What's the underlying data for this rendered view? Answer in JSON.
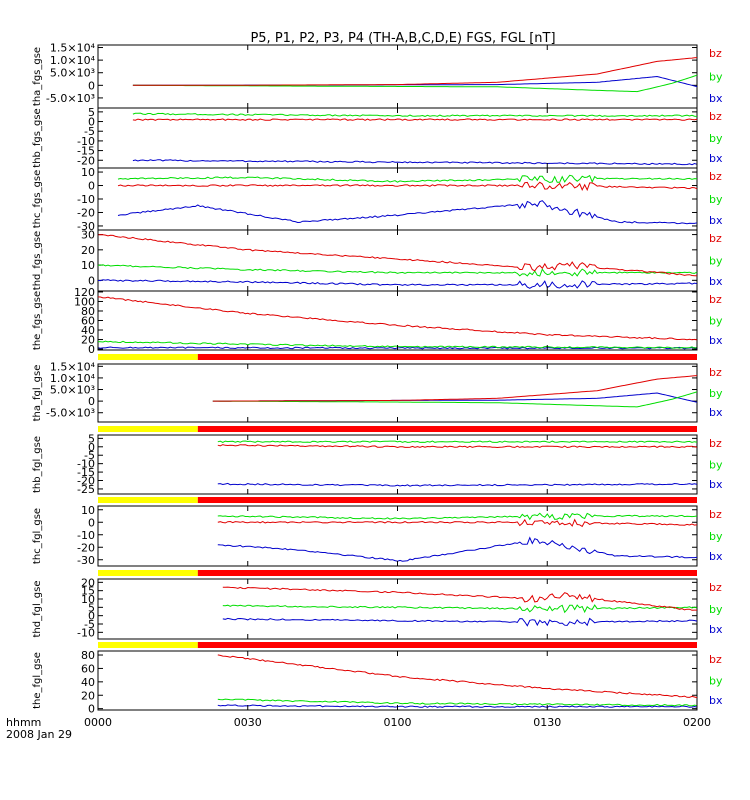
{
  "chart_data": {
    "type": "line",
    "title": "P5, P1, P2, P3, P4 (TH-A,B,C,D,E) FGS, FGL [nT]",
    "time_label": "hhmm",
    "date_label": "2008 Jan 29",
    "x_ticks": [
      "0000",
      "0030",
      "0100",
      "0130",
      "0200"
    ],
    "xlim": [
      "0000",
      "0200"
    ],
    "colors": {
      "bz": "#e00000",
      "by": "#00dd00",
      "bx": "#0000cc",
      "bar_yellow": "#ffff00",
      "bar_red": "#ff0000"
    },
    "panels": [
      {
        "ylabel": "tha_fgs_gse",
        "ylim": [
          -9000,
          16000
        ],
        "yticks": [
          -5000,
          0,
          5000,
          10000,
          15000
        ],
        "ytick_labels": [
          "-5.0×10³",
          "0",
          "5.0×10³",
          "1.0×10⁴",
          "1.5×10⁴"
        ],
        "start": "0007",
        "series": [
          {
            "name": "bz",
            "values": [
              [
                7,
                0
              ],
              [
                30,
                50
              ],
              [
                60,
                300
              ],
              [
                80,
                1200
              ],
              [
                100,
                4500
              ],
              [
                112,
                9500
              ],
              [
                120,
                11000
              ]
            ]
          },
          {
            "name": "by",
            "values": [
              [
                7,
                0
              ],
              [
                40,
                -300
              ],
              [
                80,
                -600
              ],
              [
                100,
                -2000
              ],
              [
                108,
                -2500
              ],
              [
                115,
                800
              ],
              [
                120,
                4000
              ]
            ]
          },
          {
            "name": "bx",
            "values": [
              [
                7,
                0
              ],
              [
                40,
                100
              ],
              [
                80,
                300
              ],
              [
                100,
                1200
              ],
              [
                112,
                3500
              ],
              [
                116,
                1500
              ],
              [
                120,
                -500
              ]
            ]
          }
        ]
      },
      {
        "ylabel": "thb_fgs_gse",
        "ylim": [
          -24,
          7
        ],
        "yticks": [
          5,
          0,
          -5,
          -10,
          -15,
          -20
        ],
        "ytick_labels": [
          "5",
          "0",
          "-5",
          "-10",
          "-15",
          "-20"
        ],
        "start": "0007",
        "series": [
          {
            "name": "bz",
            "values": [
              [
                7,
                1
              ],
              [
                60,
                1
              ],
              [
                120,
                1
              ]
            ]
          },
          {
            "name": "by",
            "values": [
              [
                7,
                4
              ],
              [
                60,
                3
              ],
              [
                120,
                3
              ]
            ]
          },
          {
            "name": "bx",
            "values": [
              [
                7,
                -20
              ],
              [
                60,
                -21
              ],
              [
                120,
                -22
              ]
            ]
          }
        ]
      },
      {
        "ylabel": "thc_fgs_gse",
        "ylim": [
          -33,
          13
        ],
        "yticks": [
          10,
          0,
          -10,
          -20,
          -30
        ],
        "ytick_labels": [
          "10",
          "0",
          "-10",
          "-20",
          "-30"
        ],
        "start": "0004",
        "series": [
          {
            "name": "bz",
            "values": [
              [
                4,
                0
              ],
              [
                30,
                0
              ],
              [
                60,
                0
              ],
              [
                90,
                0
              ],
              [
                120,
                -2
              ]
            ]
          },
          {
            "name": "by",
            "values": [
              [
                4,
                5
              ],
              [
                30,
                6
              ],
              [
                60,
                3
              ],
              [
                90,
                5
              ],
              [
                120,
                5
              ]
            ]
          },
          {
            "name": "bx",
            "values": [
              [
                4,
                -22
              ],
              [
                20,
                -15
              ],
              [
                40,
                -27
              ],
              [
                60,
                -22
              ],
              [
                88,
                -13
              ],
              [
                104,
                -27
              ],
              [
                120,
                -28
              ]
            ]
          }
        ]
      },
      {
        "ylabel": "thd_fgs_gse",
        "ylim": [
          -7,
          33
        ],
        "yticks": [
          30,
          20,
          10,
          0
        ],
        "ytick_labels": [
          "30",
          "20",
          "10",
          "0"
        ],
        "start": "0000",
        "series": [
          {
            "name": "bz",
            "values": [
              [
                0,
                30
              ],
              [
                30,
                20
              ],
              [
                60,
                14
              ],
              [
                88,
                8
              ],
              [
                94,
                10
              ],
              [
                120,
                3
              ]
            ]
          },
          {
            "name": "by",
            "values": [
              [
                0,
                10
              ],
              [
                30,
                7
              ],
              [
                60,
                5
              ],
              [
                90,
                5
              ],
              [
                120,
                5
              ]
            ]
          },
          {
            "name": "bx",
            "values": [
              [
                0,
                0
              ],
              [
                30,
                -1
              ],
              [
                60,
                -3
              ],
              [
                90,
                -3
              ],
              [
                120,
                -2
              ]
            ]
          }
        ]
      },
      {
        "ylabel": "the_fgs_gse",
        "ylim": [
          -2,
          122
        ],
        "yticks": [
          120,
          100,
          80,
          60,
          40,
          20,
          0
        ],
        "ytick_labels": [
          "120",
          "100",
          "80",
          "60",
          "40",
          "20",
          "0"
        ],
        "start": "0000",
        "series": [
          {
            "name": "bz",
            "values": [
              [
                0,
                110
              ],
              [
                30,
                75
              ],
              [
                60,
                50
              ],
              [
                90,
                30
              ],
              [
                120,
                20
              ]
            ]
          },
          {
            "name": "by",
            "values": [
              [
                0,
                16
              ],
              [
                30,
                10
              ],
              [
                60,
                5
              ],
              [
                120,
                3
              ]
            ]
          },
          {
            "name": "bx",
            "values": [
              [
                0,
                3
              ],
              [
                60,
                2
              ],
              [
                120,
                2
              ]
            ]
          }
        ]
      },
      {
        "ylabel": "tha_fgl_gse",
        "ylim": [
          -9000,
          16000
        ],
        "yticks": [
          -5000,
          0,
          5000,
          10000,
          15000
        ],
        "ytick_labels": [
          "-5.0×10³",
          "0",
          "5.0×10³",
          "1.0×10⁴",
          "1.5×10⁴"
        ],
        "start": "0023",
        "bar_split": "0020",
        "series": [
          {
            "name": "bz",
            "values": [
              [
                23,
                0
              ],
              [
                60,
                300
              ],
              [
                80,
                1200
              ],
              [
                100,
                4500
              ],
              [
                112,
                9500
              ],
              [
                120,
                11000
              ]
            ]
          },
          {
            "name": "by",
            "values": [
              [
                23,
                0
              ],
              [
                60,
                -400
              ],
              [
                80,
                -700
              ],
              [
                100,
                -2000
              ],
              [
                108,
                -2500
              ],
              [
                115,
                800
              ],
              [
                120,
                4000
              ]
            ]
          },
          {
            "name": "bx",
            "values": [
              [
                23,
                0
              ],
              [
                60,
                300
              ],
              [
                80,
                400
              ],
              [
                100,
                1200
              ],
              [
                112,
                3500
              ],
              [
                116,
                1500
              ],
              [
                120,
                -500
              ]
            ]
          }
        ]
      },
      {
        "ylabel": "thb_fgl_gse",
        "ylim": [
          -28,
          7
        ],
        "yticks": [
          5,
          0,
          -5,
          -10,
          -15,
          -20,
          -25
        ],
        "ytick_labels": [
          "5",
          "0",
          "-5",
          "-10",
          "-15",
          "-20",
          "-25"
        ],
        "start": "0024",
        "bar_split": "0020",
        "series": [
          {
            "name": "bz",
            "values": [
              [
                24,
                1
              ],
              [
                60,
                0
              ],
              [
                120,
                0
              ]
            ]
          },
          {
            "name": "by",
            "values": [
              [
                24,
                3
              ],
              [
                60,
                3
              ],
              [
                120,
                3
              ]
            ]
          },
          {
            "name": "bx",
            "values": [
              [
                24,
                -22
              ],
              [
                60,
                -23
              ],
              [
                120,
                -22
              ]
            ]
          }
        ]
      },
      {
        "ylabel": "thc_fgl_gse",
        "ylim": [
          -35,
          13
        ],
        "yticks": [
          10,
          0,
          -10,
          -20,
          -30
        ],
        "ytick_labels": [
          "10",
          "0",
          "-10",
          "-20",
          "-30"
        ],
        "start": "0024",
        "bar_split": "0020",
        "series": [
          {
            "name": "bz",
            "values": [
              [
                24,
                0
              ],
              [
                60,
                0
              ],
              [
                90,
                0
              ],
              [
                120,
                -2
              ]
            ]
          },
          {
            "name": "by",
            "values": [
              [
                24,
                5
              ],
              [
                60,
                3
              ],
              [
                90,
                5
              ],
              [
                120,
                5
              ]
            ]
          },
          {
            "name": "bx",
            "values": [
              [
                24,
                -18
              ],
              [
                40,
                -22
              ],
              [
                61,
                -31
              ],
              [
                88,
                -14
              ],
              [
                104,
                -27
              ],
              [
                120,
                -28
              ]
            ]
          }
        ]
      },
      {
        "ylabel": "thd_fgl_gse",
        "ylim": [
          -14,
          22
        ],
        "yticks": [
          20,
          15,
          10,
          5,
          0,
          -5,
          -10
        ],
        "ytick_labels": [
          "20",
          "15",
          "10",
          "5",
          "0",
          "-5",
          "-10"
        ],
        "start": "0025",
        "bar_split": "0020",
        "series": [
          {
            "name": "bz",
            "values": [
              [
                25,
                17
              ],
              [
                60,
                14
              ],
              [
                88,
                10
              ],
              [
                94,
                12
              ],
              [
                120,
                3
              ]
            ]
          },
          {
            "name": "by",
            "values": [
              [
                25,
                6
              ],
              [
                60,
                5
              ],
              [
                90,
                4
              ],
              [
                120,
                5
              ]
            ]
          },
          {
            "name": "bx",
            "values": [
              [
                25,
                -2
              ],
              [
                60,
                -3
              ],
              [
                90,
                -4
              ],
              [
                120,
                -3
              ]
            ]
          }
        ]
      },
      {
        "ylabel": "the_fgl_gse",
        "ylim": [
          -2,
          86
        ],
        "yticks": [
          80,
          60,
          40,
          20,
          0
        ],
        "ytick_labels": [
          "80",
          "60",
          "40",
          "20",
          "0"
        ],
        "start": "0024",
        "bar_split": "0020",
        "series": [
          {
            "name": "bz",
            "values": [
              [
                24,
                80
              ],
              [
                60,
                48
              ],
              [
                90,
                30
              ],
              [
                120,
                17
              ]
            ]
          },
          {
            "name": "by",
            "values": [
              [
                24,
                14
              ],
              [
                60,
                8
              ],
              [
                120,
                5
              ]
            ]
          },
          {
            "name": "bx",
            "values": [
              [
                24,
                5
              ],
              [
                60,
                3
              ],
              [
                120,
                3
              ]
            ]
          }
        ]
      }
    ]
  }
}
